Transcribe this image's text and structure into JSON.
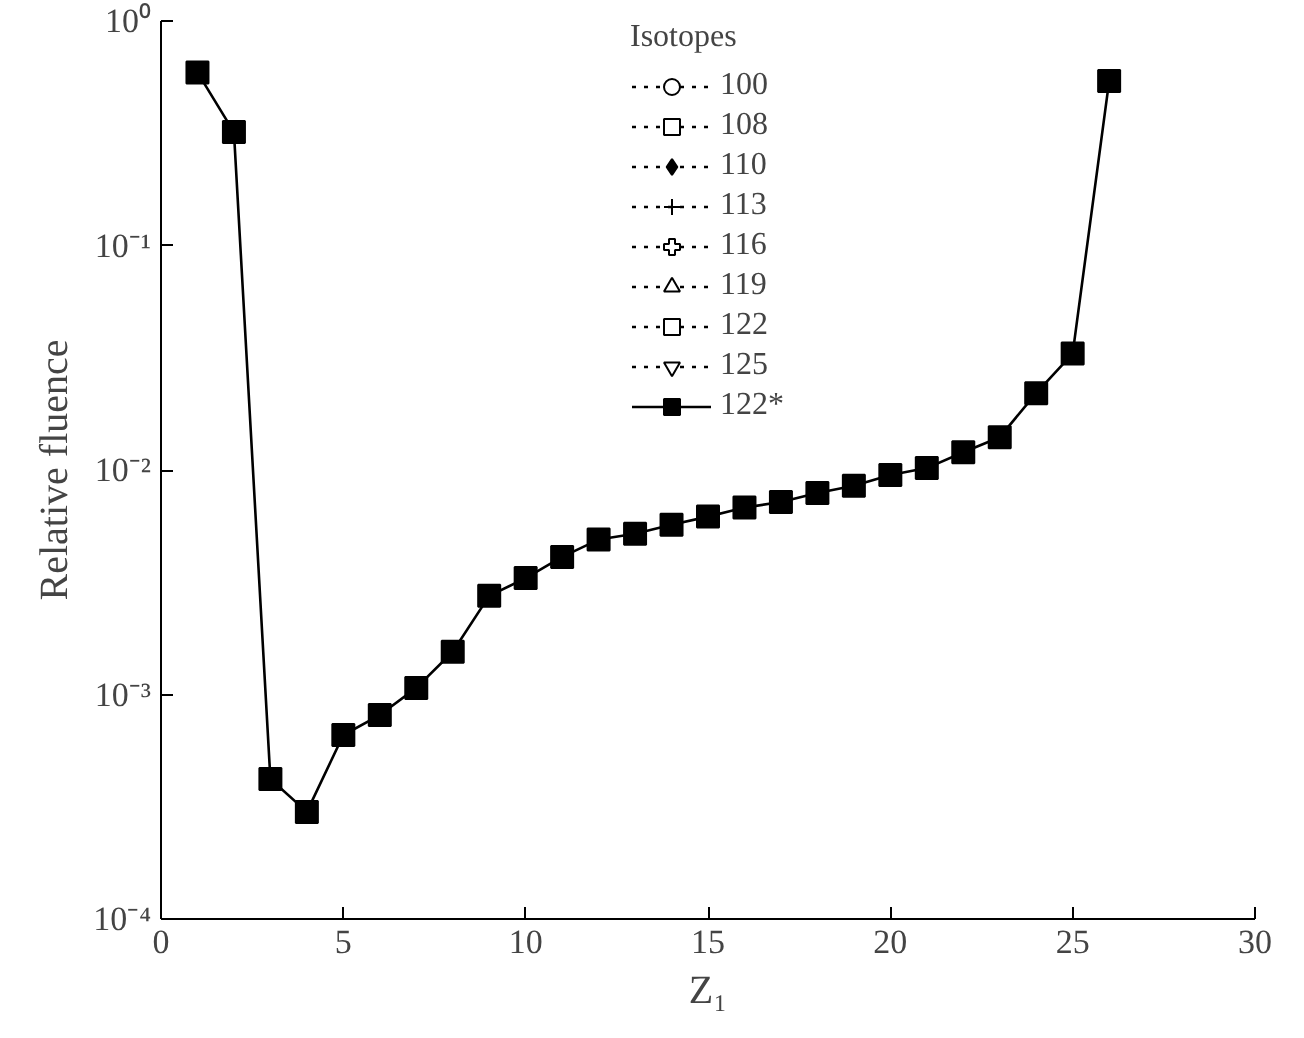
{
  "chart_data": {
    "type": "line",
    "xlabel": "Z₁",
    "ylabel": "Relative fluence",
    "legend_title": "Isotopes",
    "x": [
      1,
      2,
      3,
      4,
      5,
      6,
      7,
      8,
      9,
      10,
      11,
      12,
      13,
      14,
      15,
      16,
      17,
      18,
      19,
      20,
      21,
      22,
      23,
      24,
      25,
      26
    ],
    "series": [
      {
        "name": "100",
        "color": "#000000",
        "marker": "circle",
        "line_style": "dotted",
        "values": [
          null,
          null,
          null,
          null,
          null,
          null,
          null,
          null,
          null,
          null,
          null,
          null,
          null,
          null,
          null,
          null,
          null,
          null,
          null,
          null,
          null,
          null,
          null,
          null,
          null,
          null
        ]
      },
      {
        "name": "108",
        "color": "#000000",
        "marker": "square",
        "line_style": "dotted",
        "values": [
          null,
          null,
          null,
          null,
          null,
          null,
          null,
          null,
          null,
          null,
          null,
          null,
          null,
          null,
          null,
          null,
          null,
          null,
          null,
          null,
          null,
          null,
          null,
          null,
          null,
          null
        ]
      },
      {
        "name": "110",
        "color": "#000000",
        "marker": "diamond",
        "line_style": "dotted",
        "values": [
          null,
          null,
          null,
          null,
          null,
          null,
          null,
          null,
          null,
          null,
          null,
          null,
          null,
          null,
          null,
          null,
          null,
          null,
          null,
          null,
          null,
          null,
          null,
          null,
          null,
          null
        ]
      },
      {
        "name": "113",
        "color": "#000000",
        "marker": "cross",
        "line_style": "dotted",
        "values": [
          null,
          null,
          null,
          null,
          null,
          null,
          null,
          null,
          null,
          null,
          null,
          null,
          null,
          null,
          null,
          null,
          null,
          null,
          null,
          null,
          null,
          null,
          null,
          null,
          null,
          null
        ]
      },
      {
        "name": "116",
        "color": "#000000",
        "marker": "plus",
        "line_style": "dotted",
        "values": [
          null,
          null,
          null,
          null,
          null,
          null,
          null,
          null,
          null,
          null,
          null,
          null,
          null,
          null,
          null,
          null,
          null,
          null,
          null,
          null,
          null,
          null,
          null,
          null,
          null,
          null
        ]
      },
      {
        "name": "119",
        "color": "#000000",
        "marker": "triangle",
        "line_style": "dotted",
        "values": [
          null,
          null,
          null,
          null,
          null,
          null,
          null,
          null,
          null,
          null,
          null,
          null,
          null,
          null,
          null,
          null,
          null,
          null,
          null,
          null,
          null,
          null,
          null,
          null,
          null,
          null
        ]
      },
      {
        "name": "122",
        "color": "#000000",
        "marker": "square",
        "line_style": "dotted",
        "values": [
          null,
          null,
          null,
          null,
          null,
          null,
          null,
          null,
          null,
          null,
          null,
          null,
          null,
          null,
          null,
          null,
          null,
          null,
          null,
          null,
          null,
          null,
          null,
          null,
          null,
          null
        ]
      },
      {
        "name": "125",
        "color": "#000000",
        "marker": "inverted_triangle",
        "line_style": "dotted",
        "values": [
          null,
          null,
          null,
          null,
          null,
          null,
          null,
          null,
          null,
          null,
          null,
          null,
          null,
          null,
          null,
          null,
          null,
          null,
          null,
          null,
          null,
          null,
          null,
          null,
          null,
          null
        ]
      },
      {
        "name": "122*",
        "color": "#000000",
        "marker": "square",
        "line_style": "solid",
        "values": [
          0.59,
          0.32,
          0.00042,
          0.0003,
          0.00066,
          0.00081,
          0.00107,
          0.00155,
          0.00275,
          0.0033,
          0.0041,
          0.0049,
          0.0052,
          0.0057,
          0.0062,
          0.0068,
          0.0072,
          0.0079,
          0.0085,
          0.0095,
          0.0102,
          0.012,
          0.014,
          0.022,
          0.033,
          0.54
        ]
      }
    ],
    "log": "y",
    "grid": false,
    "legend": "top",
    "xlim": [
      0,
      30
    ],
    "xticks": [
      0,
      5,
      10,
      15,
      20,
      25,
      30
    ],
    "ylim": [
      0.0001,
      1
    ],
    "yticks": [
      {
        "value": 0.0001,
        "label": "10⁻⁴"
      },
      {
        "value": 0.001,
        "label": "10⁻³"
      },
      {
        "value": 0.01,
        "label": "10⁻²"
      },
      {
        "value": 0.1,
        "label": "10⁻¹"
      },
      {
        "value": 1,
        "label": "10⁰"
      }
    ]
  }
}
